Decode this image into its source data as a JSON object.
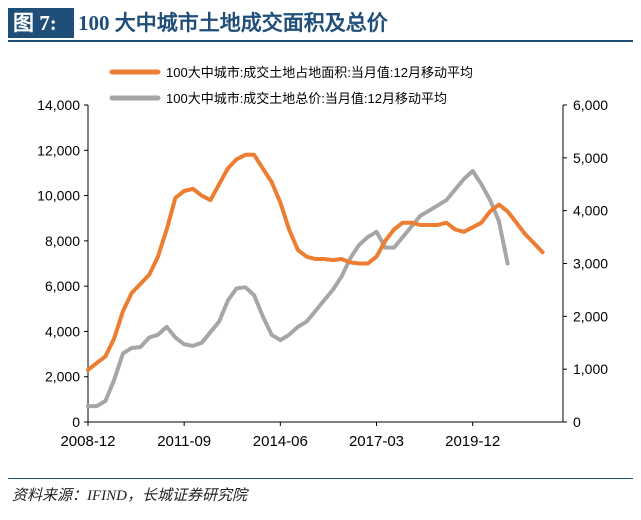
{
  "header": {
    "figure_tag": "图 7:",
    "title": "100 大中城市土地成交面积及总价"
  },
  "source": "资料来源：IFIND，长城证券研究院",
  "colors": {
    "title_bg": "#1f4e79",
    "area_series": "#ed7d31",
    "price_series": "#a6a6a6"
  },
  "chart_data": {
    "type": "line",
    "title": "",
    "x_tick_labels": [
      "2008-12",
      "2011-09",
      "2014-06",
      "2017-03",
      "2019-12"
    ],
    "x_range": [
      "2008-12",
      "2022-07"
    ],
    "y_left": {
      "range": [
        0,
        14000
      ],
      "ticks": [
        "0",
        "2,000",
        "4,000",
        "6,000",
        "8,000",
        "10,000",
        "12,000",
        "14,000"
      ]
    },
    "y_right": {
      "range": [
        0,
        6000
      ],
      "ticks": [
        "0",
        "1,000",
        "2,000",
        "3,000",
        "4,000",
        "5,000",
        "6,000"
      ]
    },
    "grid": false,
    "legend_position": "top-center",
    "series": [
      {
        "name": "100大中城市:成交土地占地面积:当月值:12月移动平均",
        "axis": "left",
        "color": "#ed7d31",
        "points": [
          [
            "2008-12",
            2300
          ],
          [
            "2009-03",
            2600
          ],
          [
            "2009-06",
            2900
          ],
          [
            "2009-09",
            3700
          ],
          [
            "2009-12",
            4900
          ],
          [
            "2010-03",
            5700
          ],
          [
            "2010-06",
            6100
          ],
          [
            "2010-09",
            6500
          ],
          [
            "2010-12",
            7300
          ],
          [
            "2011-03",
            8500
          ],
          [
            "2011-06",
            9900
          ],
          [
            "2011-09",
            10200
          ],
          [
            "2011-12",
            10300
          ],
          [
            "2012-03",
            10000
          ],
          [
            "2012-06",
            9800
          ],
          [
            "2012-09",
            10500
          ],
          [
            "2012-12",
            11200
          ],
          [
            "2013-03",
            11600
          ],
          [
            "2013-06",
            11800
          ],
          [
            "2013-09",
            11800
          ],
          [
            "2013-12",
            11200
          ],
          [
            "2014-03",
            10600
          ],
          [
            "2014-06",
            9700
          ],
          [
            "2014-09",
            8500
          ],
          [
            "2014-12",
            7600
          ],
          [
            "2015-03",
            7300
          ],
          [
            "2015-06",
            7200
          ],
          [
            "2015-09",
            7200
          ],
          [
            "2015-12",
            7150
          ],
          [
            "2016-03",
            7200
          ],
          [
            "2016-06",
            7050
          ],
          [
            "2016-09",
            7000
          ],
          [
            "2016-12",
            7000
          ],
          [
            "2017-03",
            7300
          ],
          [
            "2017-06",
            8000
          ],
          [
            "2017-09",
            8500
          ],
          [
            "2017-12",
            8800
          ],
          [
            "2018-03",
            8800
          ],
          [
            "2018-06",
            8700
          ],
          [
            "2018-09",
            8700
          ],
          [
            "2018-12",
            8700
          ],
          [
            "2019-03",
            8800
          ],
          [
            "2019-06",
            8500
          ],
          [
            "2019-09",
            8400
          ],
          [
            "2019-12",
            8600
          ],
          [
            "2020-03",
            8800
          ],
          [
            "2020-06",
            9300
          ],
          [
            "2020-09",
            9600
          ],
          [
            "2020-12",
            9300
          ],
          [
            "2021-03",
            8800
          ],
          [
            "2021-06",
            8300
          ],
          [
            "2021-09",
            7900
          ],
          [
            "2021-12",
            7500
          ]
        ]
      },
      {
        "name": "100大中城市:成交土地总价:当月值:12月移动平均",
        "axis": "right",
        "color": "#a6a6a6",
        "points": [
          [
            "2008-12",
            300
          ],
          [
            "2009-03",
            300
          ],
          [
            "2009-06",
            400
          ],
          [
            "2009-09",
            800
          ],
          [
            "2009-12",
            1300
          ],
          [
            "2010-03",
            1400
          ],
          [
            "2010-06",
            1420
          ],
          [
            "2010-09",
            1600
          ],
          [
            "2010-12",
            1650
          ],
          [
            "2011-03",
            1800
          ],
          [
            "2011-06",
            1600
          ],
          [
            "2011-09",
            1470
          ],
          [
            "2011-12",
            1440
          ],
          [
            "2012-03",
            1500
          ],
          [
            "2012-06",
            1700
          ],
          [
            "2012-09",
            1900
          ],
          [
            "2012-12",
            2300
          ],
          [
            "2013-03",
            2530
          ],
          [
            "2013-06",
            2550
          ],
          [
            "2013-09",
            2400
          ],
          [
            "2013-12",
            2000
          ],
          [
            "2014-03",
            1650
          ],
          [
            "2014-06",
            1550
          ],
          [
            "2014-09",
            1650
          ],
          [
            "2014-12",
            1800
          ],
          [
            "2015-03",
            1900
          ],
          [
            "2015-06",
            2100
          ],
          [
            "2015-09",
            2300
          ],
          [
            "2015-12",
            2500
          ],
          [
            "2016-03",
            2750
          ],
          [
            "2016-06",
            3100
          ],
          [
            "2016-09",
            3350
          ],
          [
            "2016-12",
            3500
          ],
          [
            "2017-03",
            3600
          ],
          [
            "2017-06",
            3300
          ],
          [
            "2017-09",
            3300
          ],
          [
            "2017-12",
            3500
          ],
          [
            "2018-03",
            3700
          ],
          [
            "2018-06",
            3900
          ],
          [
            "2018-09",
            4000
          ],
          [
            "2018-12",
            4100
          ],
          [
            "2019-03",
            4200
          ],
          [
            "2019-06",
            4400
          ],
          [
            "2019-09",
            4600
          ],
          [
            "2019-12",
            4750
          ],
          [
            "2020-03",
            4500
          ],
          [
            "2020-06",
            4200
          ],
          [
            "2020-09",
            3800
          ],
          [
            "2020-12",
            3000
          ]
        ]
      }
    ]
  }
}
